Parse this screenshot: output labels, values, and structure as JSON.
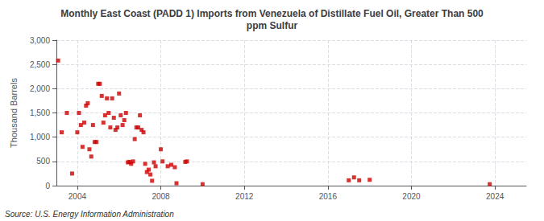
{
  "chart_data": {
    "type": "scatter",
    "title": "Monthly East Coast (PADD 1) Imports from Venezuela of Distillate Fuel Oil, Greater Than 500\nppm Sulfur",
    "ylabel": "Thousand Barrels",
    "annotation": "Source: U.S. Energy Information Administration",
    "color": "#cc0000",
    "marker": "square",
    "grid": true,
    "xlim": [
      2003.0,
      2025.5
    ],
    "ylim": [
      0,
      3000
    ],
    "xticks": [
      2004,
      2008,
      2012,
      2016,
      2020,
      2024
    ],
    "yticks": [
      0,
      500,
      {
        "value": 1000,
        "label": "1,000"
      },
      {
        "value": 1500,
        "label": "1,500"
      },
      {
        "value": 2000,
        "label": "2,000"
      },
      {
        "value": 2500,
        "label": "2,500"
      },
      {
        "value": 3000,
        "label": "3,000"
      }
    ],
    "x": [
      2003.08,
      2003.25,
      2003.5,
      2003.75,
      2004.0,
      2004.08,
      2004.17,
      2004.25,
      2004.33,
      2004.42,
      2004.5,
      2004.58,
      2004.67,
      2004.75,
      2004.83,
      2004.92,
      2005.0,
      2005.08,
      2005.17,
      2005.25,
      2005.33,
      2005.42,
      2005.5,
      2005.58,
      2005.67,
      2005.75,
      2005.83,
      2005.92,
      2006.0,
      2006.08,
      2006.17,
      2006.25,
      2006.33,
      2006.42,
      2006.5,
      2006.58,
      2006.67,
      2006.75,
      2006.83,
      2006.92,
      2007.0,
      2007.08,
      2007.17,
      2007.25,
      2007.33,
      2007.42,
      2007.5,
      2007.58,
      2007.67,
      2007.75,
      2008.0,
      2008.08,
      2008.33,
      2008.5,
      2008.67,
      2008.75,
      2009.17,
      2009.25,
      2010.0,
      2017.0,
      2017.25,
      2017.5,
      2018.0,
      2023.75
    ],
    "values": [
      2580,
      1100,
      1500,
      250,
      1100,
      1500,
      1250,
      800,
      1300,
      1650,
      1700,
      750,
      600,
      1250,
      900,
      900,
      2100,
      2100,
      1850,
      1300,
      1450,
      1800,
      1500,
      1200,
      1800,
      1400,
      1150,
      1200,
      1900,
      1450,
      1250,
      1350,
      1500,
      480,
      490,
      450,
      500,
      960,
      1200,
      1200,
      1450,
      1150,
      1100,
      450,
      280,
      330,
      230,
      100,
      480,
      400,
      750,
      500,
      400,
      430,
      380,
      50,
      490,
      500,
      30,
      110,
      170,
      110,
      120,
      30
    ]
  }
}
